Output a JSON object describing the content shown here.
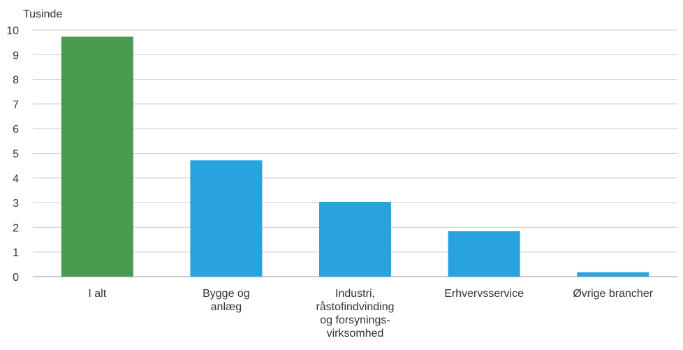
{
  "chart_data": {
    "type": "bar",
    "ylabel": "Tusinde",
    "ylim": [
      0,
      10
    ],
    "yticks": [
      0,
      1,
      2,
      3,
      4,
      5,
      6,
      7,
      8,
      9,
      10
    ],
    "grid": true,
    "categories": [
      [
        "I alt"
      ],
      [
        "Bygge og",
        "anlæg"
      ],
      [
        "Industri,",
        "råstofindvinding",
        "og forsynings-",
        "virksomhed"
      ],
      [
        "Erhvervsservice"
      ],
      [
        "Øvrige brancher"
      ]
    ],
    "values": [
      9.73,
      4.72,
      3.03,
      1.84,
      0.18
    ],
    "colors": [
      "#4a9a50",
      "#29a3de",
      "#29a3de",
      "#29a3de",
      "#29a3de"
    ]
  }
}
